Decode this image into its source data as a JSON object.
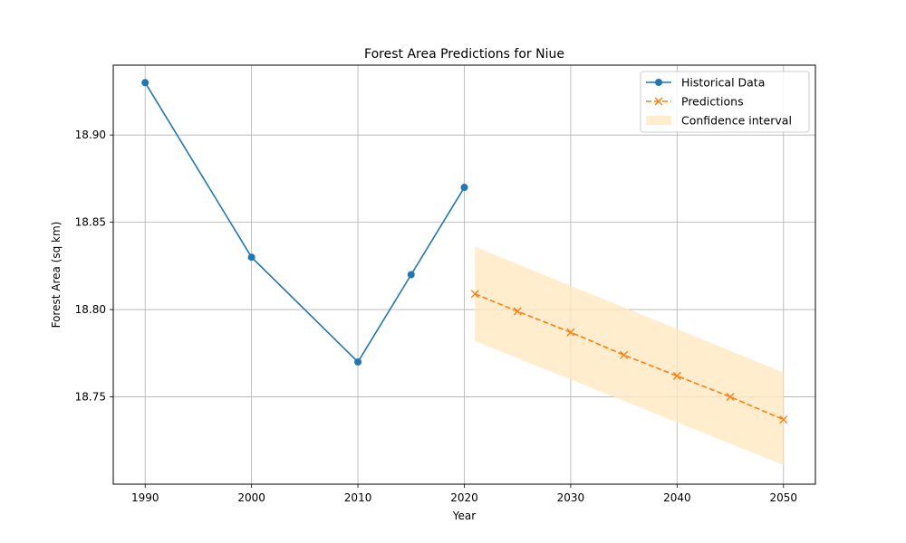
{
  "chart_data": {
    "type": "line",
    "title": "Forest Area Predictions for Niue",
    "xlabel": "Year",
    "ylabel": "Forest Area (sq km)",
    "xlim": [
      1987,
      2053
    ],
    "ylim": [
      18.7,
      18.94
    ],
    "x_ticks": [
      1990,
      2000,
      2010,
      2020,
      2030,
      2040,
      2050
    ],
    "x_tick_labels": [
      "1990",
      "2000",
      "2010",
      "2020",
      "2030",
      "2040",
      "2050"
    ],
    "y_ticks": [
      18.75,
      18.8,
      18.85,
      18.9
    ],
    "y_tick_labels": [
      "18.75",
      "18.80",
      "18.85",
      "18.90"
    ],
    "grid": true,
    "legend_position": "top-right",
    "series": [
      {
        "name": "Historical Data",
        "style": "solid-line-circle-markers",
        "color": "#1f77b4",
        "x": [
          1990,
          2000,
          2010,
          2015,
          2020
        ],
        "y": [
          18.93,
          18.83,
          18.77,
          18.82,
          18.87
        ]
      },
      {
        "name": "Predictions",
        "style": "dashed-line-x-markers",
        "color": "#ff7f0e",
        "x": [
          2021,
          2025,
          2030,
          2035,
          2040,
          2045,
          2050
        ],
        "y": [
          18.809,
          18.799,
          18.787,
          18.774,
          18.762,
          18.75,
          18.737
        ]
      }
    ],
    "confidence_interval": {
      "name": "Confidence interval",
      "color": "#ffe8c2",
      "x": [
        2021,
        2050
      ],
      "lower": [
        18.782,
        18.711
      ],
      "upper": [
        18.836,
        18.764
      ]
    }
  }
}
